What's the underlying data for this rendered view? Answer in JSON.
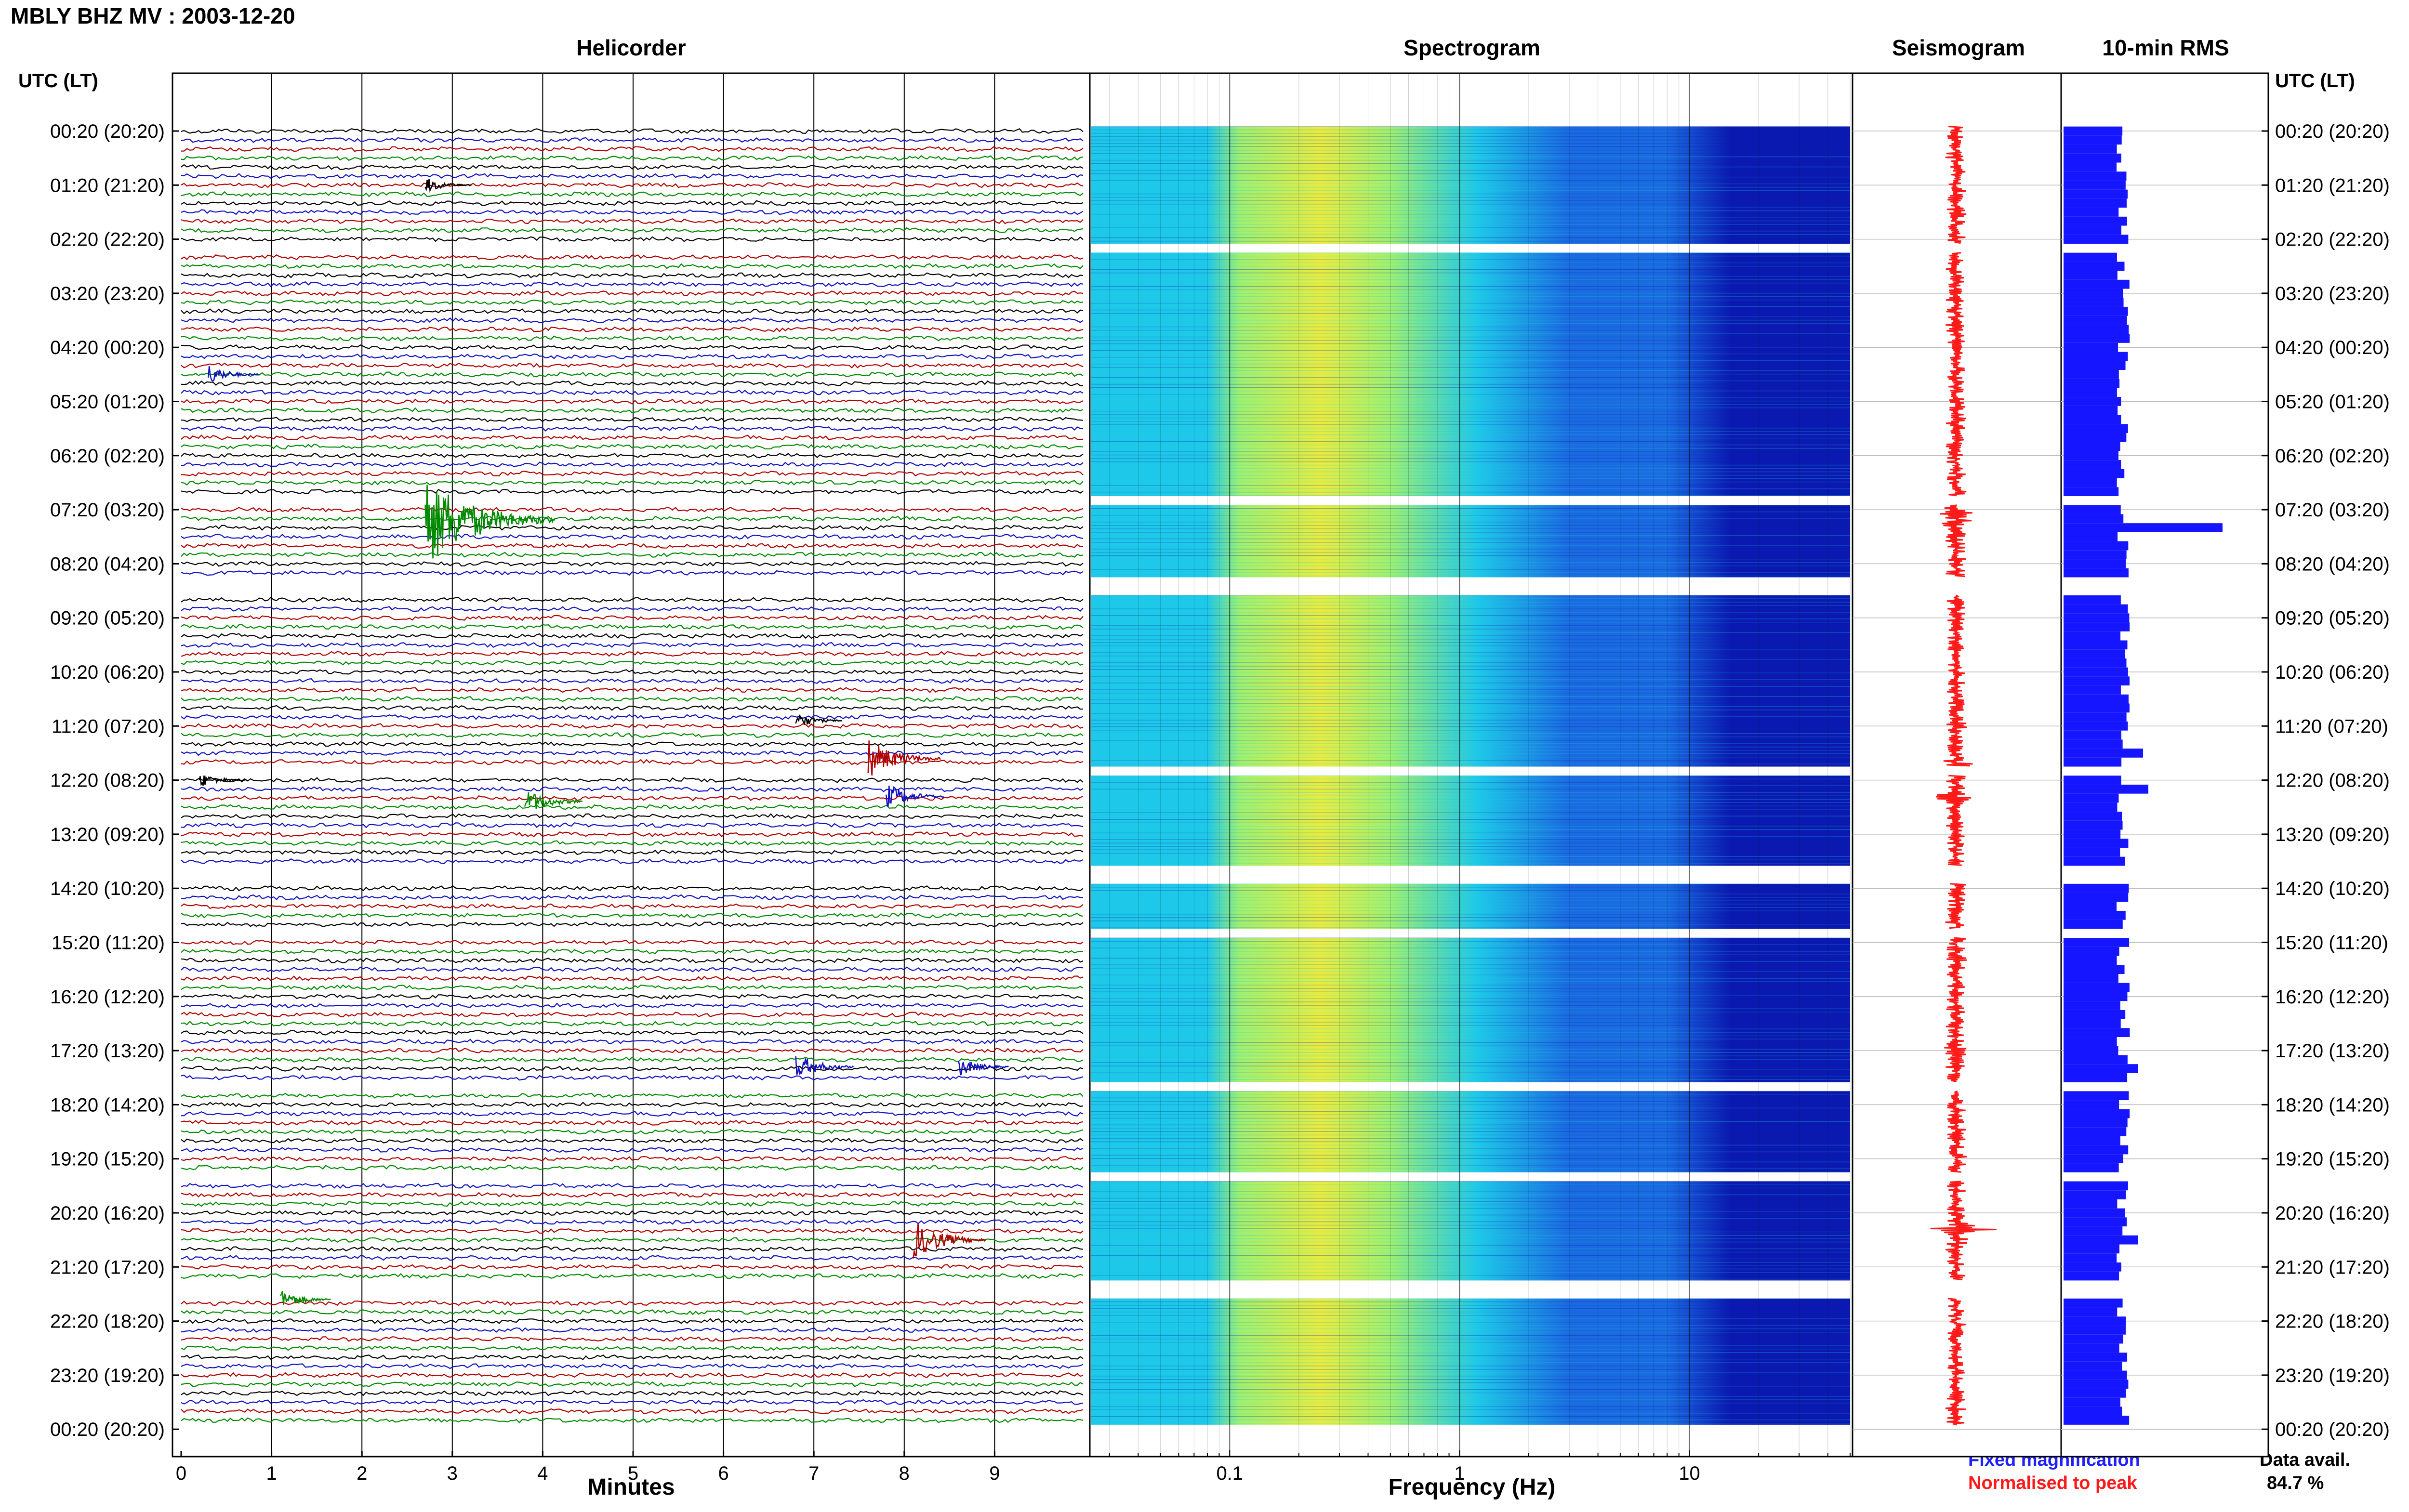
{
  "header": {
    "station": "MBLY BHZ MV : 2003-12-20",
    "time_axis_label": "UTC (LT)"
  },
  "panels": {
    "helicorder": "Helicorder",
    "spectrogram": "Spectrogram",
    "seismogram": "Seismogram",
    "rms": "10-min RMS"
  },
  "legend": {
    "fixed": "Fixed magnification",
    "normalised": "Normalised to peak",
    "colors": {
      "fixed": "#1f1fff",
      "normalised": "#ff1a1a"
    }
  },
  "availability": {
    "label": "Data avail.",
    "value": "84.7 %"
  },
  "chart_data": [
    {
      "type": "line",
      "title": "Helicorder",
      "xlabel": "Minutes",
      "xlim": [
        0,
        10
      ],
      "x_ticks": [
        "0",
        "1",
        "2",
        "3",
        "4",
        "5",
        "6",
        "7",
        "8",
        "9"
      ],
      "row_labels": [
        "00:20 (20:20)",
        "01:20 (21:20)",
        "02:20 (22:20)",
        "03:20 (23:20)",
        "04:20 (00:20)",
        "05:20 (01:20)",
        "06:20 (02:20)",
        "07:20 (03:20)",
        "08:20 (04:20)",
        "09:20 (05:20)",
        "10:20 (06:20)",
        "11:20 (07:20)",
        "12:20 (08:20)",
        "13:20 (09:20)",
        "14:20 (10:20)",
        "15:20 (11:20)",
        "16:20 (12:20)",
        "17:20 (13:20)",
        "18:20 (14:20)",
        "19:20 (15:20)",
        "20:20 (16:20)",
        "21:20 (17:20)",
        "22:20 (18:20)",
        "23:20 (19:20)",
        "00:20 (20:20)"
      ],
      "trace_colors": [
        "#000000",
        "#1010c0",
        "#b00000",
        "#008a00"
      ],
      "traces_per_hour": 6,
      "data_gaps_hours": [
        [
          2.1,
          2.3
        ],
        [
          6.8,
          7.0
        ],
        [
          8.3,
          8.6
        ],
        [
          11.7,
          11.9
        ],
        [
          13.6,
          13.9
        ],
        [
          14.7,
          14.9
        ],
        [
          17.6,
          17.8
        ],
        [
          19.3,
          19.5
        ],
        [
          21.3,
          21.6
        ],
        [
          24.0,
          24.0
        ]
      ],
      "events": [
        {
          "hour": 7.2,
          "minute": 2.7,
          "color": "#008a00",
          "amplitude": 7
        },
        {
          "hour": 11.6,
          "minute": 7.6,
          "color": "#b00000",
          "amplitude": 3
        },
        {
          "hour": 12.4,
          "minute": 3.8,
          "color": "#008a00",
          "amplitude": 2
        },
        {
          "hour": 12.3,
          "minute": 7.8,
          "color": "#1010c0",
          "amplitude": 2
        },
        {
          "hour": 17.3,
          "minute": 6.8,
          "color": "#1010c0",
          "amplitude": 2
        },
        {
          "hour": 17.3,
          "minute": 8.6,
          "color": "#1010c0",
          "amplitude": 1.5
        },
        {
          "hour": 20.5,
          "minute": 8.1,
          "color": "#b00000",
          "amplitude": 3
        },
        {
          "hour": 21.6,
          "minute": 1.1,
          "color": "#008a00",
          "amplitude": 1.5
        },
        {
          "hour": 4.5,
          "minute": 0.3,
          "color": "#1010c0",
          "amplitude": 1.5
        },
        {
          "hour": 1.0,
          "minute": 2.7,
          "color": "#000000",
          "amplitude": 1.2
        },
        {
          "hour": 12.0,
          "minute": 0.2,
          "color": "#000000",
          "amplitude": 1.2
        },
        {
          "hour": 10.9,
          "minute": 6.8,
          "color": "#000000",
          "amplitude": 1.2
        }
      ]
    },
    {
      "type": "heatmap",
      "title": "Spectrogram",
      "xlabel": "Frequency (Hz)",
      "x_scale": "log",
      "xlim": [
        0.025,
        50
      ],
      "x_ticks": [
        "0.1",
        "1",
        "10"
      ],
      "colormap": [
        "#0a1ab0",
        "#1a6ae0",
        "#1ec8e8",
        "#9ef070",
        "#e8ec40"
      ]
    },
    {
      "type": "line",
      "title": "Seismogram",
      "trace_color": "#ff1a1a",
      "spikes_hours": [
        [
          7.2,
          6.5
        ],
        [
          11.8,
          3.5
        ],
        [
          12.3,
          3.0
        ],
        [
          20.3,
          4.5
        ],
        [
          14.0,
          2.0
        ],
        [
          17.0,
          1.6
        ]
      ]
    },
    {
      "type": "bar",
      "title": "10-min RMS",
      "bar_color": "#1515ff",
      "time_labels_right": [
        "00:20 (20:20)",
        "01:20 (21:20)",
        "02:20 (22:20)",
        "03:20 (23:20)",
        "04:20 (00:20)",
        "05:20 (01:20)",
        "06:20 (02:20)",
        "07:20 (03:20)",
        "08:20 (04:20)",
        "09:20 (05:20)",
        "10:20 (06:20)",
        "11:20 (07:20)",
        "12:20 (08:20)",
        "13:20 (09:20)",
        "14:20 (10:20)",
        "15:20 (11:20)",
        "16:20 (12:20)",
        "17:20 (13:20)",
        "18:20 (14:20)",
        "19:20 (15:20)",
        "20:20 (16:20)",
        "21:20 (17:20)",
        "22:20 (18:20)",
        "23:20 (19:20)",
        "00:20 (20:20)"
      ],
      "peaks_hours": [
        [
          7.3,
          3.0
        ],
        [
          12.2,
          1.6
        ],
        [
          20.5,
          1.4
        ],
        [
          11.5,
          1.5
        ],
        [
          17.3,
          1.4
        ]
      ]
    }
  ]
}
